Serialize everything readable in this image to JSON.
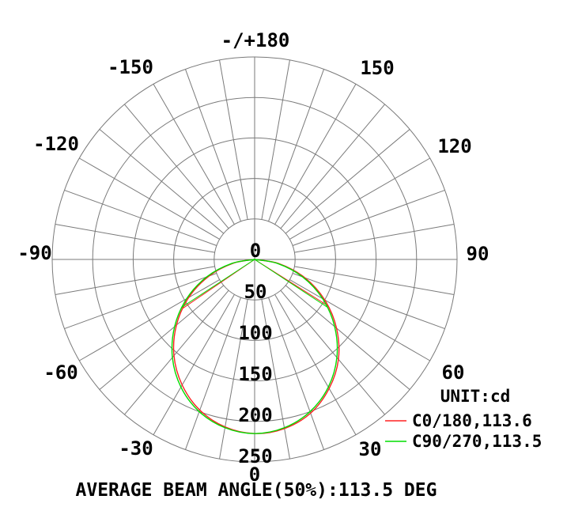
{
  "chart": {
    "unit_label": "UNIT:cd",
    "caption": "AVERAGE BEAM ANGLE(50%):113.5 DEG",
    "legend": [
      {
        "label": "C0/180,113.6",
        "color": "#ff2020"
      },
      {
        "label": "C90/270,113.5",
        "color": "#00dd00"
      }
    ],
    "colors": {
      "grid": "#7a7a7a",
      "text": "#000000",
      "background": "#ffffff"
    }
  },
  "chart_data": {
    "type": "line",
    "polar": true,
    "title": "",
    "unit": "cd",
    "zero_angle_position": "bottom",
    "angle_axis": {
      "spoke_step_deg": 10,
      "label_step_deg": 30,
      "labels": [
        {
          "deg": 0,
          "text": "0"
        },
        {
          "deg": 30,
          "text": "30"
        },
        {
          "deg": 60,
          "text": "60"
        },
        {
          "deg": 90,
          "text": "90"
        },
        {
          "deg": 120,
          "text": "120"
        },
        {
          "deg": 150,
          "text": "150"
        },
        {
          "deg": 180,
          "text": "-/+180"
        },
        {
          "deg": -150,
          "text": "-150"
        },
        {
          "deg": -120,
          "text": "-120"
        },
        {
          "deg": -90,
          "text": "-90"
        },
        {
          "deg": -60,
          "text": "-60"
        },
        {
          "deg": -30,
          "text": "-30"
        }
      ]
    },
    "r_axis": {
      "min": 0,
      "max": 250,
      "step": 50,
      "tick_labels": [
        "0",
        "50",
        "100",
        "150",
        "200",
        "250"
      ]
    },
    "x_deg": [
      -90,
      -80,
      -70,
      -60,
      -50,
      -40,
      -30,
      -20,
      -10,
      0,
      10,
      20,
      30,
      40,
      50,
      60,
      70,
      80,
      90
    ],
    "series": [
      {
        "name": "C0/180",
        "beam_angle_50_deg": 113.6,
        "color": "#ff2020",
        "values": [
          0,
          27,
          60,
          94,
          126,
          155,
          179,
          198,
          210,
          215,
          212,
          202,
          184,
          161,
          132,
          100,
          66,
          31,
          0
        ]
      },
      {
        "name": "C90/270",
        "beam_angle_50_deg": 113.5,
        "color": "#00dd00",
        "values": [
          0,
          29,
          63,
          97,
          129,
          158,
          182,
          200,
          211,
          215,
          211,
          200,
          182,
          158,
          129,
          97,
          63,
          29,
          0
        ]
      }
    ],
    "average_beam_angle_50_deg": 113.5
  }
}
